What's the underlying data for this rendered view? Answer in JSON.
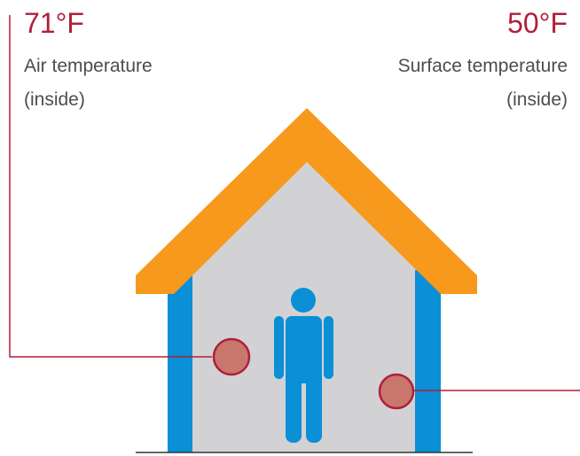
{
  "air": {
    "temperature": "71°F",
    "label_line1": "Air temperature",
    "label_line2": "(inside)"
  },
  "surface": {
    "temperature": "50°F",
    "label_line1": "Surface temperature",
    "label_line2": "(inside)"
  },
  "colors": {
    "accent": "#b01f3a",
    "roof": "#f7991c",
    "wall": "#0b8fd6",
    "interior": "#d2d2d4",
    "person": "#0b8fd6",
    "marker_fill": "#c9776c",
    "text": "#4d4d4d"
  }
}
